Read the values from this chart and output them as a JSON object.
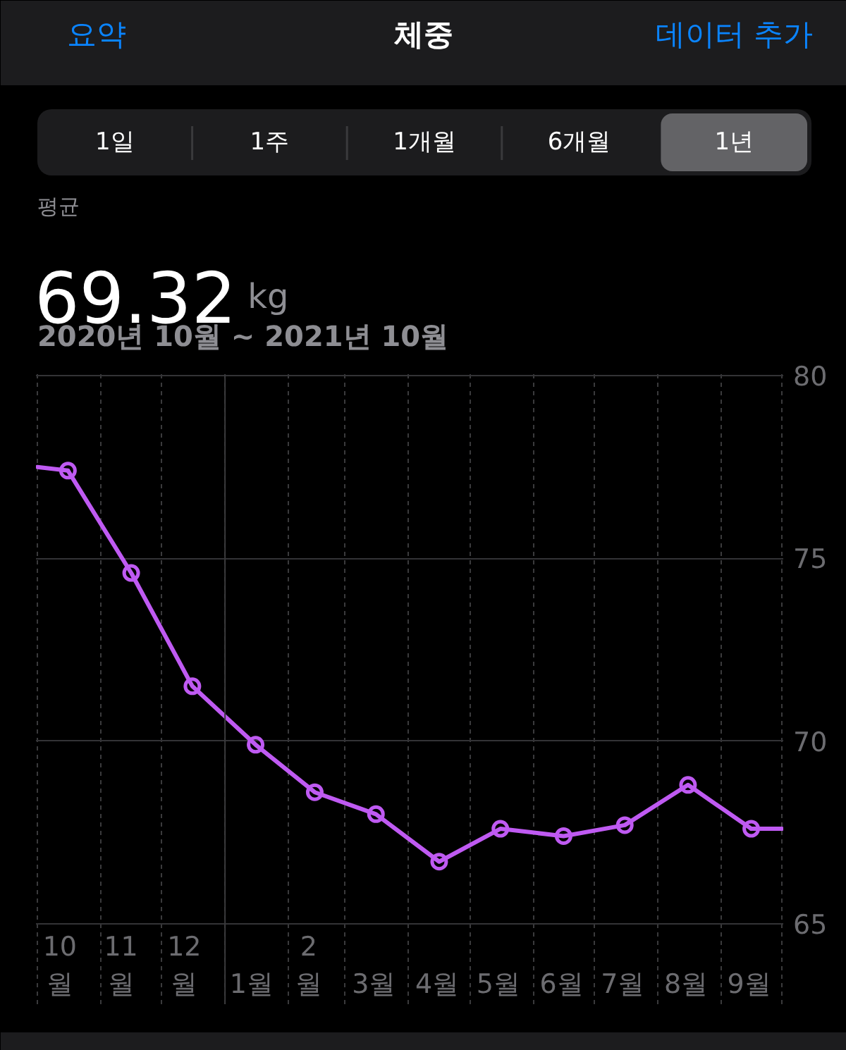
{
  "chart_data": {
    "type": "line",
    "title": "체중",
    "subtitle": "2020년 10월 ~ 2021년 10월",
    "annotations": [
      "요약",
      "데이터 추가",
      "1일",
      "1주",
      "1개월",
      "6개월",
      "1년",
      "평균",
      "69.32",
      "kg"
    ],
    "xlim": [
      "2020-10-01",
      "2021-10-01"
    ],
    "xticks": [
      {
        "value": "2020-10-01",
        "label": null
      },
      {
        "value": "2020-10-12",
        "label": "10월"
      },
      {
        "value": "2020-11-01",
        "label": null
      },
      {
        "value": "2020-11-11",
        "label": "11월"
      },
      {
        "value": "2020-12-01",
        "label": null
      },
      {
        "value": "2020-12-12",
        "label": "12월"
      },
      {
        "value": "2021-01-01",
        "label": null
      },
      {
        "value": "2021-01-14",
        "label": "1월"
      },
      {
        "value": "2021-02-01",
        "label": null
      },
      {
        "value": "2021-02-11",
        "label": "2월"
      },
      {
        "value": "2021-03-01",
        "label": null
      },
      {
        "value": "2021-03-15",
        "label": "3월"
      },
      {
        "value": "2021-04-01",
        "label": null
      },
      {
        "value": "2021-04-15",
        "label": "4월"
      },
      {
        "value": "2021-05-01",
        "label": null
      },
      {
        "value": "2021-05-15",
        "label": "5월"
      },
      {
        "value": "2021-06-01",
        "label": null
      },
      {
        "value": "2021-06-15",
        "label": "6월"
      },
      {
        "value": "2021-07-01",
        "label": null
      },
      {
        "value": "2021-07-15",
        "label": "7월"
      },
      {
        "value": "2021-08-01",
        "label": null
      },
      {
        "value": "2021-08-15",
        "label": "8월"
      },
      {
        "value": "2021-09-01",
        "label": null
      },
      {
        "value": "2021-09-15",
        "label": "9월"
      },
      {
        "value": "2021-10-01",
        "label": null
      }
    ],
    "ylim": [
      62.8,
      80
    ],
    "yticks": [
      65,
      70,
      75,
      80
    ],
    "grid": true,
    "ref_lines": [
      {
        "axis": "x",
        "value": "2021-01-01",
        "color": "#3a3a3c",
        "line_style": "solid"
      }
    ],
    "series": [
      {
        "color": "#bf5af2",
        "marker": "circle",
        "x": [
          "2020-10-16",
          "2020-11-16",
          "2020-12-16",
          "2021-01-16",
          "2021-02-14",
          "2021-03-16",
          "2021-04-16",
          "2021-05-16",
          "2021-06-16",
          "2021-07-16",
          "2021-08-16",
          "2021-09-16"
        ],
        "values": [
          77.4,
          74.6,
          71.5,
          69.9,
          68.6,
          68.0,
          66.7,
          67.6,
          67.4,
          67.7,
          68.8,
          67.6
        ]
      },
      {
        "color": "#bf5af2",
        "marker": "none",
        "x": [
          "2020-10-01",
          "2020-10-16"
        ],
        "values": [
          77.5,
          77.4
        ]
      },
      {
        "color": "#bf5af2",
        "marker": "none",
        "x": [
          "2021-09-16",
          "2021-10-01"
        ],
        "values": [
          67.6,
          67.6
        ]
      }
    ]
  }
}
